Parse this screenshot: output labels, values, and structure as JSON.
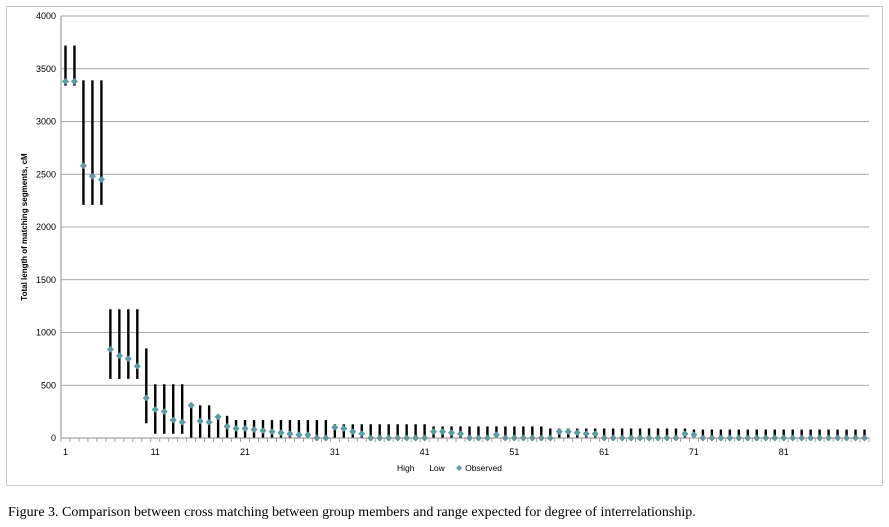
{
  "chart_data": {
    "type": "scatter",
    "ylabel": "Total length of matching segments, cM",
    "ylim": [
      0,
      4000
    ],
    "yticks": [
      0,
      500,
      1000,
      1500,
      2000,
      2500,
      3000,
      3500,
      4000
    ],
    "xlim": [
      1,
      90
    ],
    "xticks": [
      1,
      11,
      21,
      31,
      41,
      51,
      61,
      71,
      81
    ],
    "grid": true,
    "legend_position": "bottom",
    "legend": [
      {
        "name": "High",
        "marker": "bar-top"
      },
      {
        "name": "Low",
        "marker": "bar-bottom"
      },
      {
        "name": "Observed",
        "marker": "diamond"
      }
    ],
    "colors": {
      "range": "#000000",
      "observed": "#5b9ea6"
    },
    "x": [
      1,
      2,
      3,
      4,
      5,
      6,
      7,
      8,
      9,
      10,
      11,
      12,
      13,
      14,
      15,
      16,
      17,
      18,
      19,
      20,
      21,
      22,
      23,
      24,
      25,
      26,
      27,
      28,
      29,
      30,
      31,
      32,
      33,
      34,
      35,
      36,
      37,
      38,
      39,
      40,
      41,
      42,
      43,
      44,
      45,
      46,
      47,
      48,
      49,
      50,
      51,
      52,
      53,
      54,
      55,
      56,
      57,
      58,
      59,
      60,
      61,
      62,
      63,
      64,
      65,
      66,
      67,
      68,
      69,
      70,
      71,
      72,
      73,
      74,
      75,
      76,
      77,
      78,
      79,
      80,
      81,
      82,
      83,
      84,
      85,
      86,
      87,
      88,
      89,
      90
    ],
    "series": [
      {
        "name": "High",
        "values": [
          3720,
          3720,
          3390,
          3390,
          3390,
          1220,
          1220,
          1220,
          1220,
          850,
          510,
          510,
          510,
          510,
          310,
          310,
          310,
          210,
          210,
          170,
          170,
          170,
          170,
          170,
          170,
          170,
          170,
          170,
          170,
          170,
          130,
          130,
          130,
          130,
          130,
          130,
          130,
          130,
          130,
          130,
          130,
          110,
          110,
          110,
          110,
          110,
          110,
          110,
          110,
          110,
          110,
          110,
          110,
          110,
          90,
          90,
          90,
          90,
          90,
          90,
          90,
          90,
          90,
          90,
          90,
          90,
          90,
          90,
          90,
          90,
          80,
          80,
          80,
          80,
          80,
          80,
          80,
          80,
          80,
          80,
          80,
          80,
          80,
          80,
          80,
          80,
          80,
          80,
          80,
          80
        ]
      },
      {
        "name": "Low",
        "values": [
          3340,
          3340,
          2210,
          2210,
          2210,
          560,
          560,
          560,
          560,
          140,
          40,
          40,
          40,
          40,
          0,
          0,
          0,
          0,
          0,
          0,
          0,
          0,
          0,
          0,
          0,
          0,
          0,
          0,
          0,
          0,
          0,
          0,
          0,
          0,
          0,
          0,
          0,
          0,
          0,
          0,
          0,
          0,
          0,
          0,
          0,
          0,
          0,
          0,
          0,
          0,
          0,
          0,
          0,
          0,
          0,
          0,
          0,
          0,
          0,
          0,
          0,
          0,
          0,
          0,
          0,
          0,
          0,
          0,
          0,
          0,
          0,
          0,
          0,
          0,
          0,
          0,
          0,
          0,
          0,
          0,
          0,
          0,
          0,
          0,
          0,
          0,
          0,
          0,
          0,
          0
        ]
      },
      {
        "name": "Observed",
        "values": [
          3380,
          3380,
          2580,
          2480,
          2450,
          840,
          780,
          750,
          680,
          380,
          270,
          250,
          170,
          150,
          310,
          160,
          150,
          200,
          110,
          90,
          90,
          80,
          70,
          60,
          50,
          40,
          30,
          30,
          0,
          0,
          100,
          90,
          60,
          40,
          0,
          0,
          0,
          0,
          0,
          0,
          0,
          60,
          60,
          50,
          40,
          0,
          0,
          0,
          30,
          0,
          0,
          0,
          0,
          0,
          0,
          60,
          60,
          50,
          40,
          40,
          0,
          0,
          0,
          0,
          0,
          0,
          0,
          0,
          0,
          40,
          30,
          0,
          0,
          0,
          0,
          0,
          0,
          0,
          0,
          0,
          0,
          0,
          0,
          0,
          0,
          0,
          0,
          0,
          0,
          0
        ]
      }
    ]
  },
  "caption": "Figure 3.  Comparison between cross matching between group members and range expected for degree of interrelationship."
}
